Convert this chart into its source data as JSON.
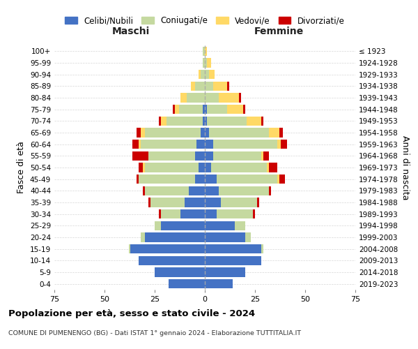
{
  "age_groups": [
    "0-4",
    "5-9",
    "10-14",
    "15-19",
    "20-24",
    "25-29",
    "30-34",
    "35-39",
    "40-44",
    "45-49",
    "50-54",
    "55-59",
    "60-64",
    "65-69",
    "70-74",
    "75-79",
    "80-84",
    "85-89",
    "90-94",
    "95-99",
    "100+"
  ],
  "birth_years": [
    "2019-2023",
    "2014-2018",
    "2009-2013",
    "2004-2008",
    "1999-2003",
    "1994-1998",
    "1989-1993",
    "1984-1988",
    "1979-1983",
    "1974-1978",
    "1969-1973",
    "1964-1968",
    "1959-1963",
    "1954-1958",
    "1949-1953",
    "1944-1948",
    "1939-1943",
    "1934-1938",
    "1929-1933",
    "1924-1928",
    "≤ 1923"
  ],
  "maschi": {
    "celibi": [
      18,
      25,
      33,
      37,
      30,
      22,
      12,
      10,
      8,
      5,
      3,
      5,
      4,
      2,
      1,
      1,
      0,
      0,
      0,
      0,
      0
    ],
    "coniugati": [
      0,
      0,
      0,
      1,
      2,
      3,
      10,
      17,
      22,
      28,
      27,
      23,
      28,
      28,
      18,
      12,
      9,
      5,
      2,
      1,
      1
    ],
    "vedovi": [
      0,
      0,
      0,
      0,
      0,
      0,
      0,
      0,
      0,
      0,
      1,
      0,
      1,
      2,
      3,
      2,
      3,
      2,
      1,
      0,
      0
    ],
    "divorziati": [
      0,
      0,
      0,
      0,
      0,
      0,
      1,
      1,
      1,
      1,
      2,
      8,
      3,
      2,
      1,
      1,
      0,
      0,
      0,
      0,
      0
    ]
  },
  "femmine": {
    "nubili": [
      14,
      20,
      28,
      28,
      20,
      15,
      6,
      8,
      7,
      6,
      3,
      4,
      4,
      2,
      1,
      1,
      0,
      0,
      0,
      0,
      0
    ],
    "coniugate": [
      0,
      0,
      0,
      1,
      3,
      5,
      18,
      18,
      25,
      30,
      28,
      24,
      32,
      30,
      20,
      10,
      7,
      4,
      2,
      1,
      0
    ],
    "vedove": [
      0,
      0,
      0,
      0,
      0,
      0,
      0,
      0,
      0,
      1,
      1,
      1,
      2,
      5,
      7,
      8,
      10,
      7,
      3,
      2,
      1
    ],
    "divorziate": [
      0,
      0,
      0,
      0,
      0,
      0,
      1,
      1,
      1,
      3,
      4,
      3,
      3,
      2,
      1,
      1,
      1,
      1,
      0,
      0,
      0
    ]
  },
  "colors": {
    "celibi_nubili": "#4472C4",
    "coniugati": "#c5d9a0",
    "vedovi": "#ffd966",
    "divorziati": "#cc0000"
  },
  "title": "Popolazione per età, sesso e stato civile - 2024",
  "subtitle": "COMUNE DI PUMENENGO (BG) - Dati ISTAT 1° gennaio 2024 - Elaborazione TUTTITALIA.IT",
  "xlabel_maschi": "Maschi",
  "xlabel_femmine": "Femmine",
  "ylabel_left": "Fasce di età",
  "ylabel_right": "Anni di nascita",
  "xlim": 75,
  "legend_labels": [
    "Celibi/Nubili",
    "Coniugati/e",
    "Vedovi/e",
    "Divorziati/e"
  ],
  "background_color": "#ffffff",
  "grid_color": "#cccccc"
}
